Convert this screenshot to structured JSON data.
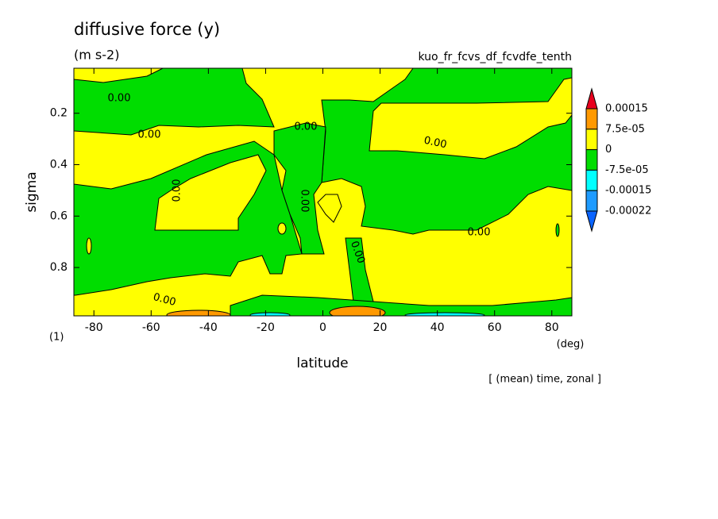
{
  "chart_data": {
    "type": "contour",
    "title": "diffusive force (y)",
    "subtitle": "(m s-2)",
    "variable": "kuo_fr_fcvs_df_fcvdfe_tenth",
    "x_label": "latitude",
    "x_unit": "(deg)",
    "y_label": "sigma",
    "corner_label": "(1)",
    "note": "[ (mean) time, zonal ]",
    "xlim": [
      -87,
      87
    ],
    "xticks": [
      -80,
      -60,
      -40,
      -20,
      0,
      20,
      40,
      60,
      80
    ],
    "ylim": [
      0.025,
      0.988
    ],
    "y_inverted": true,
    "yticks": [
      0.2,
      0.4,
      0.6,
      0.8
    ],
    "levels": [
      {
        "value": 0.00015,
        "label": "0.00015"
      },
      {
        "value": 7.5e-05,
        "label": "7.5e-05"
      },
      0,
      {
        "value": -7.5e-05,
        "label": "-7.5e-05"
      },
      {
        "value": -0.00015,
        "label": "-0.00015"
      },
      {
        "value": -0.00022,
        "label": "-0.00022"
      }
    ],
    "colors": [
      "#e8001e",
      "#ff9900",
      "#ffff00",
      "#00dd00",
      "#00ffff",
      "#1e9bff",
      "#0a64ff"
    ],
    "contour_labels": [
      "0.00",
      "0.00",
      "0.00",
      "0.00",
      "0.00",
      "0.00",
      "0.00",
      "0.00",
      "0.00"
    ]
  }
}
